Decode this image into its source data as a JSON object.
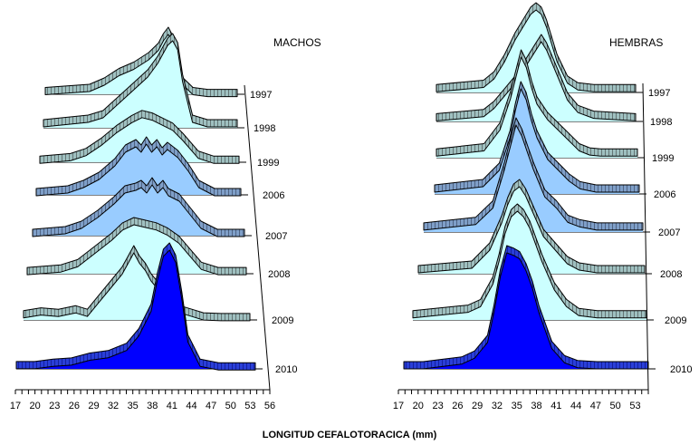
{
  "xlabel": "LONGITUD CEFALOTORACICA (mm)",
  "chart_data": [
    {
      "type": "area",
      "title": "MACHOS",
      "xlim": [
        17,
        56
      ],
      "x_ticks": [
        "17",
        "20",
        "23",
        "26",
        "29",
        "32",
        "35",
        "38",
        "41",
        "44",
        "47",
        "50",
        "53",
        "56"
      ],
      "series": [
        {
          "name": "1997",
          "x": [
            17,
            26,
            29,
            32,
            35,
            38,
            40,
            41,
            42,
            43,
            44,
            45,
            47,
            50,
            56
          ],
          "values": [
            0.05,
            0.1,
            0.2,
            0.35,
            0.45,
            0.6,
            0.75,
            0.9,
            1.0,
            0.85,
            0.55,
            0.2,
            0.05,
            0.02,
            0.02
          ]
        },
        {
          "name": "1998",
          "x": [
            17,
            26,
            29,
            32,
            35,
            38,
            40,
            42,
            43,
            44,
            45,
            47,
            50,
            56
          ],
          "values": [
            0.05,
            0.1,
            0.15,
            0.3,
            0.45,
            0.6,
            0.75,
            0.95,
            1.0,
            0.9,
            0.55,
            0.1,
            0.05,
            0.05
          ]
        },
        {
          "name": "1999",
          "x": [
            17,
            23,
            26,
            29,
            32,
            35,
            37,
            39,
            41,
            43,
            45,
            48,
            51,
            56
          ],
          "values": [
            0.05,
            0.1,
            0.2,
            0.4,
            0.65,
            0.85,
            0.95,
            0.9,
            0.8,
            0.7,
            0.5,
            0.15,
            0.05,
            0.05
          ]
        },
        {
          "name": "2006",
          "x": [
            17,
            23,
            26,
            29,
            32,
            34,
            36,
            37,
            38,
            39,
            40,
            41,
            42,
            44,
            46,
            48,
            51,
            56
          ],
          "values": [
            0.05,
            0.1,
            0.2,
            0.35,
            0.6,
            0.85,
            0.95,
            0.85,
            1.0,
            0.85,
            0.95,
            0.8,
            0.9,
            0.75,
            0.5,
            0.2,
            0.05,
            0.05
          ]
        },
        {
          "name": "2007",
          "x": [
            17,
            23,
            26,
            29,
            32,
            34,
            36,
            37,
            38,
            39,
            40,
            41,
            42,
            44,
            46,
            48,
            51,
            56
          ],
          "values": [
            0.05,
            0.1,
            0.2,
            0.4,
            0.65,
            0.85,
            0.9,
            0.95,
            0.85,
            1.0,
            0.85,
            0.95,
            0.8,
            0.7,
            0.45,
            0.2,
            0.05,
            0.05
          ]
        },
        {
          "name": "2008",
          "x": [
            17,
            23,
            26,
            29,
            32,
            34,
            36,
            38,
            40,
            42,
            44,
            46,
            48,
            51,
            56
          ],
          "values": [
            0.05,
            0.1,
            0.2,
            0.45,
            0.7,
            0.9,
            1.0,
            0.95,
            0.9,
            0.8,
            0.65,
            0.4,
            0.15,
            0.05,
            0.05
          ]
        },
        {
          "name": "2009",
          "x": [
            17,
            20,
            23,
            26,
            28,
            30,
            32,
            34,
            35,
            36,
            37,
            38,
            39,
            40,
            42,
            44,
            46,
            48,
            51,
            56
          ],
          "values": [
            0.08,
            0.12,
            0.1,
            0.15,
            0.1,
            0.3,
            0.5,
            0.7,
            0.85,
            1.0,
            0.85,
            0.75,
            0.6,
            0.5,
            0.3,
            0.15,
            0.1,
            0.05,
            0.04,
            0.04
          ]
        },
        {
          "name": "2010",
          "x": [
            17,
            20,
            23,
            26,
            29,
            32,
            35,
            37,
            39,
            40,
            41,
            42,
            43,
            44,
            45,
            47,
            50,
            56
          ],
          "values": [
            0.03,
            0.03,
            0.05,
            0.06,
            0.1,
            0.12,
            0.18,
            0.3,
            0.5,
            0.75,
            0.95,
            1.0,
            0.9,
            0.6,
            0.25,
            0.05,
            0.02,
            0.02
          ]
        }
      ]
    },
    {
      "type": "area",
      "title": "HEMBRAS",
      "xlim": [
        17,
        55
      ],
      "x_ticks": [
        "17",
        "20",
        "23",
        "26",
        "29",
        "32",
        "35",
        "38",
        "41",
        "44",
        "47",
        "50",
        "53"
      ],
      "series": [
        {
          "name": "1997",
          "x": [
            17,
            26,
            28,
            30,
            32,
            34,
            35,
            36,
            37,
            38,
            40,
            42,
            44,
            47,
            55
          ],
          "values": [
            0.05,
            0.1,
            0.2,
            0.4,
            0.65,
            0.85,
            0.95,
            1.0,
            0.95,
            0.8,
            0.4,
            0.15,
            0.07,
            0.05,
            0.05
          ]
        },
        {
          "name": "1998",
          "x": [
            17,
            26,
            28,
            30,
            32,
            34,
            36,
            37,
            38,
            40,
            42,
            44,
            47,
            55
          ],
          "values": [
            0.05,
            0.1,
            0.2,
            0.35,
            0.5,
            0.7,
            0.9,
            1.0,
            0.9,
            0.6,
            0.3,
            0.15,
            0.08,
            0.05
          ]
        },
        {
          "name": "1999",
          "x": [
            17,
            26,
            29,
            31,
            32,
            33,
            34,
            35,
            36,
            38,
            40,
            42,
            44,
            46,
            48,
            55
          ],
          "values": [
            0.05,
            0.1,
            0.3,
            0.6,
            0.8,
            1.0,
            0.9,
            0.7,
            0.55,
            0.4,
            0.3,
            0.2,
            0.1,
            0.06,
            0.05,
            0.05
          ]
        },
        {
          "name": "2006",
          "x": [
            17,
            26,
            29,
            31,
            32,
            33,
            34,
            35,
            36,
            38,
            40,
            42,
            44,
            47,
            55
          ],
          "values": [
            0.05,
            0.1,
            0.25,
            0.55,
            0.8,
            1.0,
            0.9,
            0.7,
            0.55,
            0.35,
            0.25,
            0.15,
            0.08,
            0.05,
            0.05
          ]
        },
        {
          "name": "2007",
          "x": [
            17,
            26,
            29,
            31,
            32,
            33,
            34,
            35,
            36,
            38,
            40,
            42,
            44,
            47,
            55
          ],
          "values": [
            0.05,
            0.1,
            0.25,
            0.6,
            0.8,
            1.0,
            0.9,
            0.75,
            0.6,
            0.35,
            0.25,
            0.12,
            0.08,
            0.05,
            0.05
          ]
        },
        {
          "name": "2008",
          "x": [
            17,
            26,
            29,
            31,
            32,
            33,
            34,
            35,
            36,
            38,
            40,
            42,
            44,
            47,
            55
          ],
          "values": [
            0.05,
            0.1,
            0.3,
            0.6,
            0.8,
            0.95,
            1.0,
            0.9,
            0.75,
            0.45,
            0.3,
            0.15,
            0.08,
            0.05,
            0.05
          ]
        },
        {
          "name": "2009",
          "x": [
            17,
            26,
            28,
            30,
            31,
            32,
            33,
            34,
            35,
            36,
            38,
            40,
            42,
            44,
            47,
            55
          ],
          "values": [
            0.05,
            0.1,
            0.15,
            0.35,
            0.55,
            0.8,
            0.95,
            1.0,
            0.95,
            0.85,
            0.55,
            0.3,
            0.15,
            0.07,
            0.05,
            0.05
          ]
        },
        {
          "name": "2010",
          "x": [
            17,
            20,
            23,
            26,
            28,
            30,
            31,
            32,
            33,
            34,
            35,
            36,
            37,
            38,
            40,
            42,
            44,
            47,
            55
          ],
          "values": [
            0.03,
            0.03,
            0.05,
            0.07,
            0.12,
            0.25,
            0.5,
            0.8,
            1.0,
            0.98,
            0.95,
            0.85,
            0.7,
            0.5,
            0.2,
            0.08,
            0.04,
            0.03,
            0.03
          ]
        }
      ]
    }
  ],
  "colors": {
    "light_fill": "#ccffff",
    "mid_fill": "#99ccff",
    "dark_fill": "#0000ff",
    "band_light": "#99b8b8",
    "band_mid": "#6f8fb8",
    "band_dark": "#2233cc"
  }
}
